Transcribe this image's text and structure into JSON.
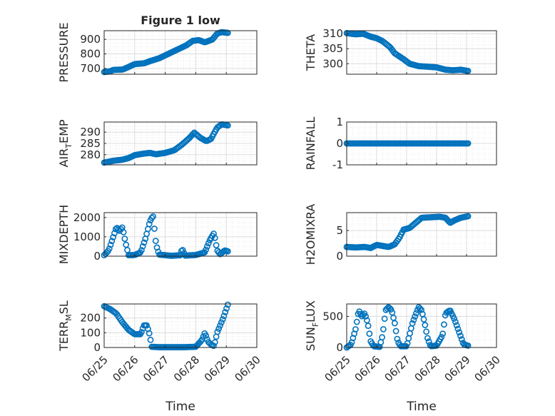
{
  "chart_data": [
    {
      "type": "scatter",
      "title": "Figure 1 low",
      "ylabel": "PRESSURE",
      "xlabel": "",
      "xlim": [
        0,
        5
      ],
      "ylim": [
        660,
        960
      ],
      "xticks": [
        0,
        1,
        2,
        3,
        4,
        5
      ],
      "xtick_labels": [
        "06/25",
        "06/26",
        "06/27",
        "06/28",
        "06/29",
        "06/30"
      ],
      "show_xtick_labels": false,
      "yticks": [
        700,
        800,
        900
      ],
      "ytick_labels": [
        "700",
        "800",
        "900"
      ],
      "grid": true,
      "anchors": [
        [
          0,
          675
        ],
        [
          0.2,
          680
        ],
        [
          0.3,
          690
        ],
        [
          0.6,
          692
        ],
        [
          0.8,
          710
        ],
        [
          1.0,
          730
        ],
        [
          1.3,
          735
        ],
        [
          1.5,
          750
        ],
        [
          1.8,
          770
        ],
        [
          2.1,
          800
        ],
        [
          2.4,
          830
        ],
        [
          2.7,
          860
        ],
        [
          2.9,
          890
        ],
        [
          3.1,
          895
        ],
        [
          3.3,
          880
        ],
        [
          3.55,
          900
        ],
        [
          3.7,
          940
        ],
        [
          3.85,
          950
        ],
        [
          4.05,
          945
        ]
      ]
    },
    {
      "type": "scatter",
      "title": "",
      "ylabel": "THETA",
      "xlabel": "",
      "xlim": [
        0,
        5
      ],
      "ylim": [
        296.5,
        311
      ],
      "xticks": [
        0,
        1,
        2,
        3,
        4,
        5
      ],
      "xtick_labels": [
        "06/25",
        "06/26",
        "06/27",
        "06/28",
        "06/29",
        "06/30"
      ],
      "show_xtick_labels": false,
      "yticks": [
        300,
        305,
        310
      ],
      "ytick_labels": [
        "300",
        "305",
        "310"
      ],
      "grid": true,
      "anchors": [
        [
          0,
          310.2
        ],
        [
          0.3,
          309.8
        ],
        [
          0.55,
          310
        ],
        [
          0.8,
          309
        ],
        [
          1.0,
          308.5
        ],
        [
          1.2,
          307.5
        ],
        [
          1.45,
          305.5
        ],
        [
          1.6,
          303.5
        ],
        [
          1.9,
          301.5
        ],
        [
          2.1,
          300
        ],
        [
          2.4,
          299.2
        ],
        [
          2.7,
          299
        ],
        [
          3.0,
          298.8
        ],
        [
          3.3,
          298
        ],
        [
          3.55,
          297.8
        ],
        [
          3.8,
          298
        ],
        [
          4.05,
          297.6
        ]
      ]
    },
    {
      "type": "scatter",
      "title": "",
      "ylabel": "AIR_TEMP",
      "xlabel": "",
      "xlim": [
        0,
        5
      ],
      "ylim": [
        275.5,
        294.5
      ],
      "xticks": [
        0,
        1,
        2,
        3,
        4,
        5
      ],
      "xtick_labels": [
        "06/25",
        "06/26",
        "06/27",
        "06/28",
        "06/29",
        "06/30"
      ],
      "show_xtick_labels": false,
      "yticks": [
        280,
        285,
        290
      ],
      "ytick_labels": [
        "280",
        "285",
        "290"
      ],
      "grid": true,
      "anchors": [
        [
          0,
          276.5
        ],
        [
          0.3,
          277.3
        ],
        [
          0.6,
          277.8
        ],
        [
          0.8,
          278.5
        ],
        [
          1.0,
          279.8
        ],
        [
          1.3,
          280.5
        ],
        [
          1.5,
          280.8
        ],
        [
          1.7,
          280.2
        ],
        [
          2.0,
          280.8
        ],
        [
          2.3,
          282
        ],
        [
          2.55,
          284.5
        ],
        [
          2.8,
          287.5
        ],
        [
          2.95,
          289.8
        ],
        [
          3.15,
          287.5
        ],
        [
          3.35,
          286
        ],
        [
          3.5,
          287
        ],
        [
          3.7,
          292
        ],
        [
          3.85,
          293.5
        ],
        [
          4.05,
          293
        ]
      ]
    },
    {
      "type": "scatter",
      "title": "",
      "ylabel": "RAINFALL",
      "xlabel": "",
      "xlim": [
        0,
        5
      ],
      "ylim": [
        -1,
        1
      ],
      "xticks": [
        0,
        1,
        2,
        3,
        4,
        5
      ],
      "xtick_labels": [
        "06/25",
        "06/26",
        "06/27",
        "06/28",
        "06/29",
        "06/30"
      ],
      "show_xtick_labels": false,
      "yticks": [
        -1,
        0,
        1
      ],
      "ytick_labels": [
        "-1",
        "0",
        "1"
      ],
      "grid": true,
      "anchors": [
        [
          0,
          0
        ],
        [
          4.05,
          0
        ]
      ]
    },
    {
      "type": "scatter",
      "title": "",
      "ylabel": "MIXDEPTH",
      "xlabel": "",
      "xlim": [
        0,
        5
      ],
      "ylim": [
        0,
        2250
      ],
      "xticks": [
        0,
        1,
        2,
        3,
        4,
        5
      ],
      "xtick_labels": [
        "06/25",
        "06/26",
        "06/27",
        "06/28",
        "06/29",
        "06/30"
      ],
      "show_xtick_labels": false,
      "yticks": [
        0,
        1000,
        2000
      ],
      "ytick_labels": [
        "0",
        "1000",
        "2000"
      ],
      "grid": true,
      "anchors": [
        [
          0,
          50
        ],
        [
          0.15,
          300
        ],
        [
          0.3,
          1000
        ],
        [
          0.4,
          1500
        ],
        [
          0.5,
          1300
        ],
        [
          0.6,
          1500
        ],
        [
          0.7,
          700
        ],
        [
          0.8,
          50
        ],
        [
          1.0,
          60
        ],
        [
          1.2,
          200
        ],
        [
          1.35,
          900
        ],
        [
          1.5,
          1800
        ],
        [
          1.6,
          2100
        ],
        [
          1.7,
          600
        ],
        [
          1.8,
          80
        ],
        [
          2.2,
          20
        ],
        [
          2.5,
          50
        ],
        [
          2.55,
          400
        ],
        [
          2.65,
          30
        ],
        [
          3.0,
          60
        ],
        [
          3.3,
          200
        ],
        [
          3.45,
          800
        ],
        [
          3.6,
          1200
        ],
        [
          3.7,
          300
        ],
        [
          3.8,
          100
        ],
        [
          3.95,
          300
        ],
        [
          4.05,
          250
        ]
      ],
      "hollow": true
    },
    {
      "type": "scatter",
      "title": "",
      "ylabel": "H2OMIXRA",
      "xlabel": "",
      "xlim": [
        0,
        5
      ],
      "ylim": [
        0,
        8.5
      ],
      "xticks": [
        0,
        1,
        2,
        3,
        4,
        5
      ],
      "xtick_labels": [
        "06/25",
        "06/26",
        "06/27",
        "06/28",
        "06/29",
        "06/30"
      ],
      "show_xtick_labels": false,
      "yticks": [
        0,
        5
      ],
      "ytick_labels": [
        "0",
        "5"
      ],
      "grid": true,
      "anchors": [
        [
          0,
          1.8
        ],
        [
          0.3,
          1.7
        ],
        [
          0.6,
          1.8
        ],
        [
          0.8,
          1.6
        ],
        [
          1.0,
          2.2
        ],
        [
          1.2,
          2.0
        ],
        [
          1.4,
          1.8
        ],
        [
          1.6,
          2.3
        ],
        [
          1.75,
          3.5
        ],
        [
          1.9,
          5.2
        ],
        [
          2.1,
          5.5
        ],
        [
          2.3,
          6.5
        ],
        [
          2.5,
          7.5
        ],
        [
          2.8,
          7.6
        ],
        [
          3.1,
          7.7
        ],
        [
          3.3,
          7.5
        ],
        [
          3.45,
          6.5
        ],
        [
          3.6,
          7.0
        ],
        [
          3.8,
          7.5
        ],
        [
          4.05,
          7.8
        ]
      ],
      "hollow": true
    },
    {
      "type": "scatter",
      "title": "",
      "ylabel": "TERR_MSL",
      "xlabel": "Time",
      "xlim": [
        0,
        5
      ],
      "ylim": [
        0,
        295
      ],
      "xticks": [
        0,
        1,
        2,
        3,
        4,
        5
      ],
      "xtick_labels": [
        "06/25",
        "06/26",
        "06/27",
        "06/28",
        "06/29",
        "06/30"
      ],
      "show_xtick_labels": true,
      "yticks": [
        0,
        100,
        200
      ],
      "ytick_labels": [
        "0",
        "100",
        "200"
      ],
      "grid": true,
      "anchors": [
        [
          0,
          280
        ],
        [
          0.2,
          260
        ],
        [
          0.4,
          230
        ],
        [
          0.6,
          170
        ],
        [
          0.8,
          120
        ],
        [
          1.0,
          90
        ],
        [
          1.2,
          90
        ],
        [
          1.3,
          150
        ],
        [
          1.4,
          150
        ],
        [
          1.5,
          80
        ],
        [
          1.55,
          5
        ],
        [
          1.8,
          2
        ],
        [
          2.2,
          2
        ],
        [
          2.6,
          2
        ],
        [
          3.0,
          5
        ],
        [
          3.2,
          50
        ],
        [
          3.3,
          100
        ],
        [
          3.4,
          40
        ],
        [
          3.5,
          20
        ],
        [
          3.6,
          10
        ],
        [
          3.7,
          100
        ],
        [
          3.8,
          150
        ],
        [
          3.9,
          200
        ],
        [
          4.05,
          290
        ]
      ],
      "hollow": true
    },
    {
      "type": "scatter",
      "title": "",
      "ylabel": "SUN_FLUX",
      "xlabel": "Time",
      "xlim": [
        0,
        5
      ],
      "ylim": [
        0,
        700
      ],
      "xticks": [
        0,
        1,
        2,
        3,
        4,
        5
      ],
      "xtick_labels": [
        "06/25",
        "06/26",
        "06/27",
        "06/28",
        "06/29",
        "06/30"
      ],
      "show_xtick_labels": true,
      "yticks": [
        0,
        500
      ],
      "ytick_labels": [
        "0",
        "500"
      ],
      "grid": true,
      "anchors": [
        [
          0,
          0
        ],
        [
          0.15,
          50
        ],
        [
          0.3,
          300
        ],
        [
          0.4,
          600
        ],
        [
          0.5,
          500
        ],
        [
          0.6,
          550
        ],
        [
          0.7,
          400
        ],
        [
          0.8,
          100
        ],
        [
          0.9,
          20
        ],
        [
          1.1,
          10
        ],
        [
          1.2,
          200
        ],
        [
          1.3,
          600
        ],
        [
          1.4,
          650
        ],
        [
          1.5,
          600
        ],
        [
          1.6,
          400
        ],
        [
          1.7,
          100
        ],
        [
          1.8,
          20
        ],
        [
          2.0,
          20
        ],
        [
          2.2,
          400
        ],
        [
          2.4,
          650
        ],
        [
          2.5,
          600
        ],
        [
          2.6,
          400
        ],
        [
          2.7,
          150
        ],
        [
          2.8,
          20
        ],
        [
          3.0,
          30
        ],
        [
          3.2,
          200
        ],
        [
          3.3,
          550
        ],
        [
          3.45,
          600
        ],
        [
          3.6,
          450
        ],
        [
          3.75,
          250
        ],
        [
          3.9,
          50
        ],
        [
          4.05,
          30
        ]
      ],
      "hollow": true
    }
  ]
}
